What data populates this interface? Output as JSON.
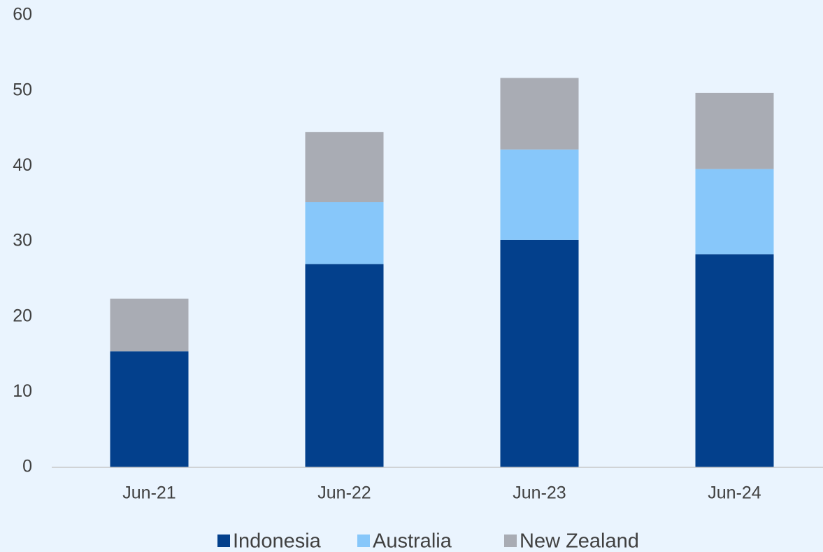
{
  "chart_data": {
    "type": "stacked_bar",
    "categories": [
      "Jun-21",
      "Jun-22",
      "Jun-23",
      "Jun-24"
    ],
    "series": [
      {
        "name": "Indonesia",
        "color": "#03408c",
        "values": [
          15.4,
          27.0,
          30.2,
          28.3
        ]
      },
      {
        "name": "Australia",
        "color": "#87c7fa",
        "values": [
          0,
          8.2,
          12.0,
          11.3
        ]
      },
      {
        "name": "New Zealand",
        "color": "#a9acb4",
        "values": [
          7.0,
          9.3,
          9.5,
          10.1
        ]
      }
    ],
    "ylim": [
      0,
      60
    ],
    "yticks": [
      0,
      10,
      20,
      30,
      40,
      50,
      60
    ],
    "grid": false,
    "legend": "bottom"
  }
}
